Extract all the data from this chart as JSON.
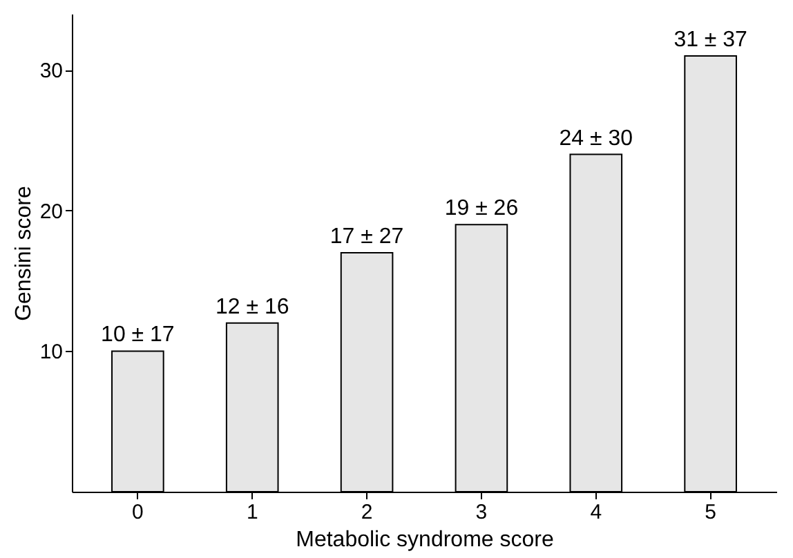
{
  "chart_data": {
    "type": "bar",
    "xlabel": "Metabolic syndrome score",
    "ylabel": "Gensini score",
    "categories": [
      "0",
      "1",
      "2",
      "3",
      "4",
      "5"
    ],
    "values": [
      10,
      12,
      17,
      19,
      24,
      31
    ],
    "value_labels": [
      "10 ± 17",
      "12 ± 16",
      "17 ± 27",
      "19 ± 26",
      "24 ± 30",
      "31 ± 37"
    ],
    "color": "#e6e6e6",
    "ylim": [
      0,
      34
    ],
    "yticks": [
      10,
      20,
      30
    ],
    "grid": false
  }
}
